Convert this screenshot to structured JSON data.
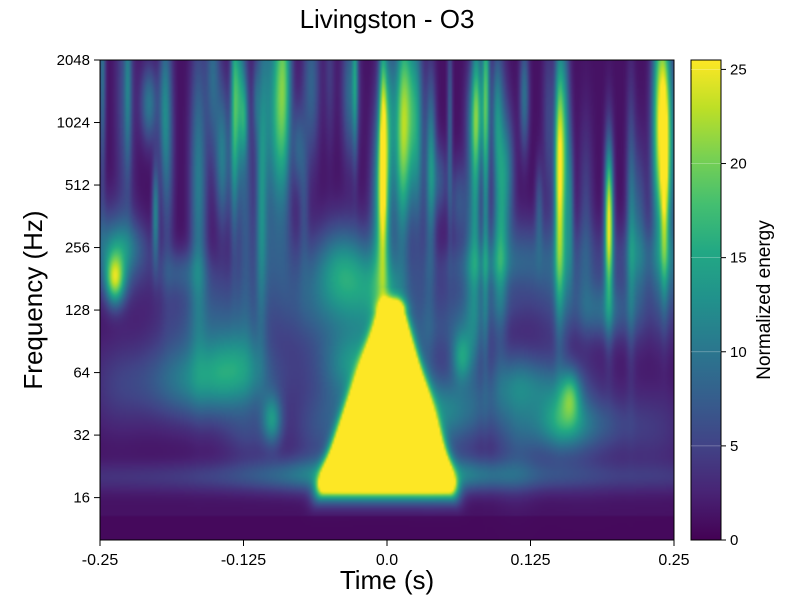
{
  "chart_data": {
    "type": "heatmap",
    "title": "Livingston - O3",
    "xlabel": "Time (s)",
    "ylabel": "Frequency (Hz)",
    "xlim": [
      -0.25,
      0.25
    ],
    "ylim": [
      10,
      2048
    ],
    "y_scale": "log2",
    "x_ticks": [
      -0.25,
      -0.125,
      0.0,
      0.125,
      0.25
    ],
    "x_tick_labels": [
      "-0.25",
      "-0.125",
      "0.0",
      "0.125",
      "0.25"
    ],
    "y_ticks": [
      16,
      32,
      64,
      128,
      256,
      512,
      1024,
      2048
    ],
    "y_tick_labels": [
      "16",
      "32",
      "64",
      "128",
      "256",
      "512",
      "1024",
      "2048"
    ],
    "colorbar": {
      "label": "Normalized energy",
      "range": [
        0,
        25.5
      ],
      "ticks": [
        0,
        5,
        10,
        15,
        20,
        25
      ],
      "tick_labels": [
        "0",
        "5",
        "10",
        "15",
        "20",
        "25"
      ],
      "colormap": "viridis"
    },
    "features": [
      {
        "kind": "chirp",
        "t": 0.0,
        "f_low": 20,
        "f_high": 125,
        "energy": 25.5
      },
      {
        "kind": "blob",
        "t": -0.237,
        "f": 180,
        "energy": 18
      },
      {
        "kind": "blob",
        "t": -0.1,
        "f": 38,
        "energy": 10
      },
      {
        "kind": "blob",
        "t": 0.16,
        "f": 50,
        "energy": 9
      },
      {
        "kind": "blob",
        "t": 0.065,
        "f": 75,
        "energy": 9
      }
    ]
  }
}
